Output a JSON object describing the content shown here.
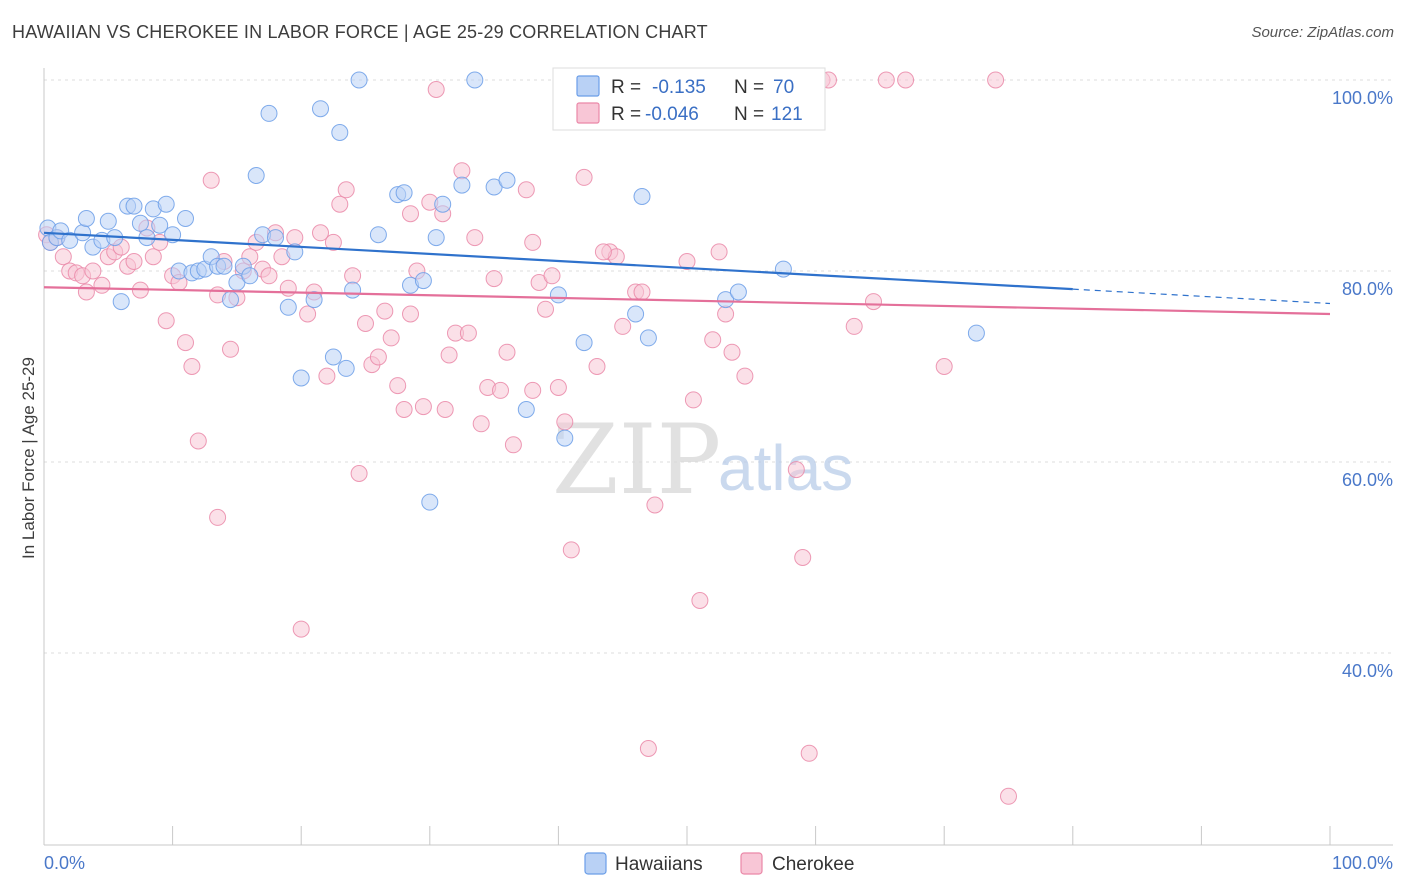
{
  "title": "HAWAIIAN VS CHEROKEE IN LABOR FORCE | AGE 25-29 CORRELATION CHART",
  "source": "Source: ZipAtlas.com",
  "watermark": {
    "zip": "ZIP",
    "atlas": "atlas"
  },
  "legend_top": [
    {
      "r_label": "R =",
      "r_value": "-0.135",
      "n_label": "N =",
      "n_value": "70",
      "color": "#6b9ee8",
      "fill": "#b9d1f5"
    },
    {
      "r_label": "R =",
      "r_value": "-0.046",
      "n_label": "N =",
      "n_value": "121",
      "color": "#ea88a8",
      "fill": "#f8c6d6"
    }
  ],
  "legend_bottom": [
    {
      "label": "Hawaiians",
      "color": "#6b9ee8",
      "fill": "#b9d1f5"
    },
    {
      "label": "Cherokee",
      "color": "#ea88a8",
      "fill": "#f8c6d6"
    }
  ],
  "chart_data": {
    "type": "scatter",
    "title": "HAWAIIAN VS CHEROKEE IN LABOR FORCE | AGE 25-29 CORRELATION CHART",
    "xlabel": "",
    "ylabel": "In Labor Force | Age 25-29",
    "xlim": [
      0,
      100
    ],
    "ylim": [
      20,
      102
    ],
    "x_tick_labels": [
      "0.0%",
      "100.0%"
    ],
    "y_ticks": [
      40,
      60,
      80,
      100
    ],
    "y_tick_labels": [
      "40.0%",
      "60.0%",
      "80.0%",
      "100.0%"
    ],
    "grid": true,
    "series": [
      {
        "name": "Hawaiians",
        "color": "#6b9ee8",
        "fill": "#b9d1f5",
        "trend": {
          "x": [
            0,
            80
          ],
          "y": [
            84.0,
            78.1
          ],
          "dashed_to": [
            100,
            76.6
          ],
          "color": "#2f72cc"
        },
        "points": [
          [
            0.3,
            84.5
          ],
          [
            0.5,
            83.0
          ],
          [
            1.0,
            83.5
          ],
          [
            1.3,
            84.2
          ],
          [
            2.0,
            83.2
          ],
          [
            3.0,
            84.0
          ],
          [
            3.3,
            85.5
          ],
          [
            3.8,
            82.5
          ],
          [
            4.5,
            83.2
          ],
          [
            5.0,
            85.2
          ],
          [
            5.5,
            83.5
          ],
          [
            6.0,
            76.8
          ],
          [
            6.5,
            86.8
          ],
          [
            7.0,
            86.8
          ],
          [
            7.5,
            85.0
          ],
          [
            8.0,
            83.5
          ],
          [
            8.5,
            86.5
          ],
          [
            9.0,
            84.8
          ],
          [
            9.5,
            87.0
          ],
          [
            10.0,
            83.8
          ],
          [
            10.5,
            80.0
          ],
          [
            11.0,
            85.5
          ],
          [
            11.5,
            79.8
          ],
          [
            12.0,
            80.0
          ],
          [
            12.5,
            80.2
          ],
          [
            13.0,
            81.5
          ],
          [
            13.5,
            80.5
          ],
          [
            14.0,
            80.5
          ],
          [
            14.5,
            77.0
          ],
          [
            15.0,
            78.8
          ],
          [
            15.5,
            80.5
          ],
          [
            16.0,
            79.5
          ],
          [
            16.5,
            90.0
          ],
          [
            17.0,
            83.8
          ],
          [
            17.5,
            96.5
          ],
          [
            18.0,
            83.5
          ],
          [
            19.0,
            76.2
          ],
          [
            19.5,
            82.0
          ],
          [
            20.0,
            68.8
          ],
          [
            21.5,
            97.0
          ],
          [
            21.0,
            77.0
          ],
          [
            22.5,
            71.0
          ],
          [
            23.0,
            94.5
          ],
          [
            23.5,
            69.8
          ],
          [
            24.0,
            78.0
          ],
          [
            24.5,
            100.0
          ],
          [
            26.0,
            83.8
          ],
          [
            27.5,
            88.0
          ],
          [
            28.0,
            88.2
          ],
          [
            28.5,
            78.5
          ],
          [
            29.5,
            79.0
          ],
          [
            30.0,
            55.8
          ],
          [
            30.5,
            83.5
          ],
          [
            31.0,
            87.0
          ],
          [
            32.5,
            89.0
          ],
          [
            33.5,
            100.0
          ],
          [
            35.0,
            88.8
          ],
          [
            36.0,
            89.5
          ],
          [
            37.5,
            65.5
          ],
          [
            40.0,
            77.5
          ],
          [
            40.5,
            62.5
          ],
          [
            42.0,
            72.5
          ],
          [
            46.0,
            75.5
          ],
          [
            46.5,
            87.8
          ],
          [
            47.0,
            73.0
          ],
          [
            51.0,
            100.0
          ],
          [
            53.0,
            77.0
          ],
          [
            54.0,
            77.8
          ],
          [
            57.5,
            80.2
          ],
          [
            72.5,
            73.5
          ]
        ]
      },
      {
        "name": "Cherokee",
        "color": "#ea88a8",
        "fill": "#f8c6d6",
        "trend": {
          "x": [
            0,
            100
          ],
          "y": [
            78.3,
            75.5
          ],
          "color": "#e4709a"
        },
        "points": [
          [
            0.2,
            83.8
          ],
          [
            0.5,
            83.0
          ],
          [
            1.0,
            83.5
          ],
          [
            1.5,
            81.5
          ],
          [
            2.0,
            80.0
          ],
          [
            2.5,
            79.8
          ],
          [
            3.0,
            79.5
          ],
          [
            3.3,
            77.8
          ],
          [
            3.8,
            80.0
          ],
          [
            4.5,
            78.5
          ],
          [
            5.0,
            81.5
          ],
          [
            5.5,
            82.0
          ],
          [
            6.0,
            82.5
          ],
          [
            6.5,
            80.5
          ],
          [
            7.0,
            81.0
          ],
          [
            7.5,
            78.0
          ],
          [
            8.0,
            84.5
          ],
          [
            8.5,
            81.5
          ],
          [
            9.0,
            83.0
          ],
          [
            9.5,
            74.8
          ],
          [
            10.0,
            79.5
          ],
          [
            10.5,
            78.8
          ],
          [
            11.0,
            72.5
          ],
          [
            11.5,
            70.0
          ],
          [
            12.0,
            62.2
          ],
          [
            13.0,
            89.5
          ],
          [
            13.5,
            54.2
          ],
          [
            14.0,
            81.0
          ],
          [
            14.5,
            71.8
          ],
          [
            15.0,
            77.2
          ],
          [
            15.5,
            80.0
          ],
          [
            16.0,
            81.5
          ],
          [
            16.5,
            83.0
          ],
          [
            17.0,
            80.2
          ],
          [
            17.5,
            79.5
          ],
          [
            18.0,
            84.0
          ],
          [
            18.5,
            81.5
          ],
          [
            19.0,
            78.2
          ],
          [
            19.5,
            83.5
          ],
          [
            20.0,
            42.5
          ],
          [
            20.5,
            75.5
          ],
          [
            21.0,
            77.8
          ],
          [
            21.5,
            84.0
          ],
          [
            22.0,
            69.0
          ],
          [
            22.5,
            83.0
          ],
          [
            23.0,
            87.0
          ],
          [
            23.5,
            88.5
          ],
          [
            24.0,
            79.5
          ],
          [
            24.5,
            58.8
          ],
          [
            25.0,
            74.5
          ],
          [
            25.5,
            70.2
          ],
          [
            26.0,
            71.0
          ],
          [
            26.5,
            75.8
          ],
          [
            27.0,
            73.0
          ],
          [
            27.5,
            68.0
          ],
          [
            28.0,
            65.5
          ],
          [
            28.5,
            86.0
          ],
          [
            29.0,
            80.0
          ],
          [
            29.5,
            65.8
          ],
          [
            30.0,
            87.2
          ],
          [
            30.5,
            99.0
          ],
          [
            31.0,
            86.0
          ],
          [
            31.5,
            71.2
          ],
          [
            32.0,
            73.5
          ],
          [
            32.5,
            90.5
          ],
          [
            33.0,
            73.5
          ],
          [
            33.5,
            83.5
          ],
          [
            34.0,
            64.0
          ],
          [
            34.5,
            67.8
          ],
          [
            35.0,
            79.2
          ],
          [
            35.5,
            67.5
          ],
          [
            36.0,
            71.5
          ],
          [
            36.5,
            61.8
          ],
          [
            37.5,
            88.5
          ],
          [
            38.0,
            83.0
          ],
          [
            38.5,
            78.8
          ],
          [
            39.0,
            76.0
          ],
          [
            39.5,
            79.5
          ],
          [
            40.0,
            67.8
          ],
          [
            40.5,
            64.2
          ],
          [
            41.0,
            50.8
          ],
          [
            42.0,
            89.8
          ],
          [
            43.0,
            70.0
          ],
          [
            44.0,
            82.0
          ],
          [
            44.5,
            81.5
          ],
          [
            45.0,
            74.2
          ],
          [
            46.0,
            77.8
          ],
          [
            46.5,
            77.8
          ],
          [
            47.0,
            30.0
          ],
          [
            47.5,
            55.5
          ],
          [
            48.0,
            100.0
          ],
          [
            49.0,
            100.0
          ],
          [
            50.0,
            81.0
          ],
          [
            50.5,
            66.5
          ],
          [
            51.0,
            45.5
          ],
          [
            52.0,
            72.8
          ],
          [
            52.5,
            82.0
          ],
          [
            53.0,
            75.5
          ],
          [
            53.5,
            71.5
          ],
          [
            54.5,
            69.0
          ],
          [
            55.0,
            100.0
          ],
          [
            57.0,
            100.0
          ],
          [
            57.5,
            100.0
          ],
          [
            58.5,
            59.2
          ],
          [
            59.0,
            50.0
          ],
          [
            59.5,
            29.5
          ],
          [
            60.5,
            100.0
          ],
          [
            61.0,
            100.0
          ],
          [
            63.0,
            74.2
          ],
          [
            64.5,
            76.8
          ],
          [
            65.5,
            100.0
          ],
          [
            67.0,
            100.0
          ],
          [
            70.0,
            70.0
          ],
          [
            74.0,
            100.0
          ],
          [
            75.0,
            25.0
          ],
          [
            13.5,
            77.5
          ],
          [
            28.5,
            75.5
          ],
          [
            48.0,
            100.0
          ],
          [
            31.2,
            65.5
          ],
          [
            43.5,
            82.0
          ],
          [
            38.0,
            67.5
          ]
        ]
      }
    ]
  }
}
